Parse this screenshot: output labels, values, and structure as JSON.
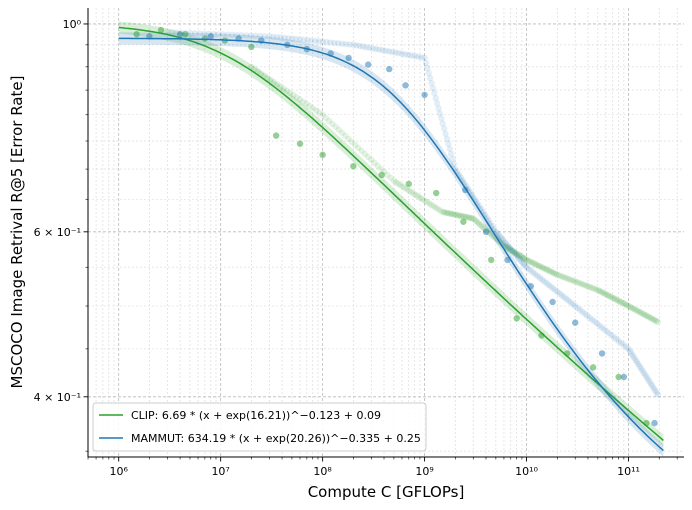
{
  "chart_data": {
    "type": "scatter",
    "xlabel": "Compute C [GFLOPs]",
    "ylabel": "MSCOCO Image Retrival R@5 [Error Rate]",
    "xscale": "log",
    "yscale": "log",
    "xlim": [
      500000,
      350000000000
    ],
    "ylim": [
      0.345,
      1.04
    ],
    "grid": true,
    "legend_position": "bottom-left",
    "x_ticks": [
      {
        "value": 1000000,
        "label": "10⁶"
      },
      {
        "value": 10000000,
        "label": "10⁷"
      },
      {
        "value": 100000000,
        "label": "10⁸"
      },
      {
        "value": 1000000000,
        "label": "10⁹"
      },
      {
        "value": 10000000000,
        "label": "10¹⁰"
      },
      {
        "value": 100000000000,
        "label": "10¹¹"
      }
    ],
    "y_ticks": [
      {
        "value": 1.0,
        "label": "10⁰"
      },
      {
        "value": 0.6,
        "label": "6 × 10⁻¹"
      },
      {
        "value": 0.4,
        "label": "4 × 10⁻¹"
      }
    ],
    "series": [
      {
        "name": "CLIP: 6.69 * (x + exp(16.21))^−0.123 + 0.09",
        "color": "#2ca02c",
        "fit": {
          "A": 6.69,
          "lnB": 16.21,
          "alpha": 0.123,
          "E": 0.09
        },
        "points": [
          [
            1500000,
            0.975
          ],
          [
            2600000,
            0.985
          ],
          [
            4500000,
            0.975
          ],
          [
            7000000,
            0.965
          ],
          [
            11000000,
            0.96
          ],
          [
            20000000,
            0.945
          ],
          [
            35000000,
            0.76
          ],
          [
            60000000,
            0.745
          ],
          [
            100000000,
            0.725
          ],
          [
            200000000,
            0.705
          ],
          [
            380000000,
            0.69
          ],
          [
            700000000,
            0.675
          ],
          [
            1300000000,
            0.66
          ],
          [
            2400000000,
            0.615
          ],
          [
            4500000000,
            0.56
          ],
          [
            8000000000,
            0.485
          ],
          [
            14000000000,
            0.465
          ],
          [
            25000000000,
            0.445
          ],
          [
            45000000000,
            0.43
          ],
          [
            80000000000,
            0.42
          ],
          [
            150000000000,
            0.375
          ]
        ],
        "band": [
          [
            20000000,
            0.9
          ],
          [
            100000000,
            0.8
          ],
          [
            500000000,
            0.68
          ],
          [
            1500000000,
            0.63
          ],
          [
            3000000000,
            0.62
          ],
          [
            6000000000,
            0.58
          ],
          [
            10000000000,
            0.56
          ],
          [
            20000000000,
            0.54
          ],
          [
            50000000000,
            0.52
          ],
          [
            100000000000,
            0.5
          ],
          [
            200000000000,
            0.48
          ]
        ]
      },
      {
        "name": "MAMMUT: 634.19 * (x + exp(20.26))^−0.335 + 0.25",
        "color": "#1f77b4",
        "fit": {
          "A": 634.19,
          "lnB": 20.26,
          "alpha": 0.335,
          "E": 0.25
        },
        "points": [
          [
            2000000,
            0.97
          ],
          [
            4000000,
            0.975
          ],
          [
            8000000,
            0.97
          ],
          [
            15000000,
            0.965
          ],
          [
            25000000,
            0.96
          ],
          [
            45000000,
            0.95
          ],
          [
            70000000,
            0.94
          ],
          [
            120000000,
            0.93
          ],
          [
            180000000,
            0.92
          ],
          [
            280000000,
            0.905
          ],
          [
            450000000,
            0.895
          ],
          [
            650000000,
            0.86
          ],
          [
            1000000000,
            0.84
          ],
          [
            2500000000,
            0.665
          ],
          [
            4000000000,
            0.6
          ],
          [
            6500000000,
            0.56
          ],
          [
            11000000000,
            0.525
          ],
          [
            18000000000,
            0.505
          ],
          [
            30000000000,
            0.48
          ],
          [
            55000000000,
            0.445
          ],
          [
            90000000000,
            0.42
          ],
          [
            180000000000,
            0.375
          ]
        ],
        "band": [
          [
            3000000,
            0.98
          ],
          [
            30000000,
            0.97
          ],
          [
            200000000,
            0.95
          ],
          [
            1000000000,
            0.92
          ],
          [
            2000000000,
            0.7
          ],
          [
            5000000000,
            0.6
          ],
          [
            10000000000,
            0.55
          ],
          [
            30000000000,
            0.5
          ],
          [
            100000000000,
            0.45
          ],
          [
            200000000000,
            0.4
          ]
        ]
      }
    ]
  }
}
